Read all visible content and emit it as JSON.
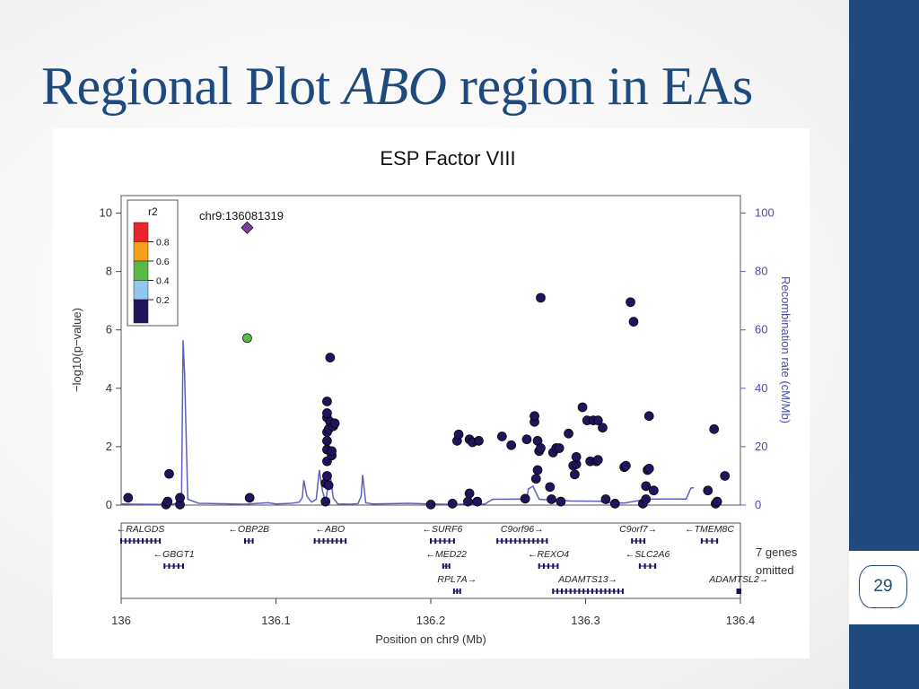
{
  "slide": {
    "title_part1": "Regional Plot",
    "title_italic": "ABO",
    "title_part2": "region in EAs",
    "page_number": "29"
  },
  "chart_data": {
    "type": "scatter",
    "title": "ESP Factor VIII",
    "xlabel": "Position on chr9 (Mb)",
    "ylabel": "−log10(p−value)",
    "y2label": "Recombination rate (cM/Mb)",
    "xlim": [
      136.0,
      136.4
    ],
    "ylim": [
      0,
      10.6
    ],
    "y2lim": [
      0,
      106
    ],
    "x_ticks": [
      "136",
      "136.1",
      "136.2",
      "136.3",
      "136.4"
    ],
    "y_ticks": [
      "0",
      "2",
      "4",
      "6",
      "8",
      "10"
    ],
    "y2_ticks": [
      "0",
      "20",
      "40",
      "60",
      "80",
      "100"
    ],
    "lead_snp": {
      "label": "chr9:136081319",
      "x": 136.0814,
      "y": 9.5,
      "color": "#7b3fa0"
    },
    "legend": {
      "title": "r2",
      "labels": [
        "0.8",
        "0.6",
        "0.4",
        "0.2"
      ],
      "colors": [
        "#e8262b",
        "#f6a21b",
        "#58b947",
        "#8fc7ef",
        "#22145a"
      ]
    },
    "colors": {
      "point_default": "#22145a",
      "point_green": "#58b947",
      "recomb_line": "#5f5fc2",
      "gene": "#1a1060"
    },
    "points": [
      [
        136.0045,
        0.25
      ],
      [
        136.029,
        0.02
      ],
      [
        136.03,
        0.12
      ],
      [
        136.031,
        1.07
      ],
      [
        136.038,
        0.02
      ],
      [
        136.038,
        0.25
      ],
      [
        136.0814,
        5.72,
        "g"
      ],
      [
        136.083,
        0.25
      ],
      [
        136.132,
        0.12
      ],
      [
        136.132,
        0.75
      ],
      [
        136.133,
        1.0
      ],
      [
        136.133,
        1.5
      ],
      [
        136.133,
        1.9
      ],
      [
        136.133,
        2.2
      ],
      [
        136.133,
        2.5
      ],
      [
        136.133,
        3.0
      ],
      [
        136.133,
        3.15
      ],
      [
        136.133,
        3.55
      ],
      [
        136.134,
        0.68
      ],
      [
        136.134,
        2.6
      ],
      [
        136.135,
        2.85
      ],
      [
        136.135,
        5.05
      ],
      [
        136.136,
        1.7
      ],
      [
        136.136,
        1.85
      ],
      [
        136.137,
        2.7
      ],
      [
        136.138,
        2.8
      ],
      [
        136.2,
        0.02
      ],
      [
        136.214,
        0.05
      ],
      [
        136.217,
        2.2
      ],
      [
        136.218,
        2.42
      ],
      [
        136.224,
        0.12
      ],
      [
        136.225,
        0.4
      ],
      [
        136.225,
        2.25
      ],
      [
        136.227,
        2.15
      ],
      [
        136.23,
        0.12
      ],
      [
        136.231,
        2.2
      ],
      [
        136.246,
        2.35
      ],
      [
        136.252,
        2.05
      ],
      [
        136.261,
        0.22
      ],
      [
        136.262,
        2.25
      ],
      [
        136.267,
        2.85
      ],
      [
        136.267,
        3.05
      ],
      [
        136.268,
        0.9
      ],
      [
        136.269,
        1.2
      ],
      [
        136.269,
        2.2
      ],
      [
        136.27,
        1.85
      ],
      [
        136.271,
        7.1
      ],
      [
        136.271,
        1.95
      ],
      [
        136.277,
        0.62
      ],
      [
        136.278,
        0.2
      ],
      [
        136.279,
        1.8
      ],
      [
        136.281,
        1.95
      ],
      [
        136.283,
        1.95
      ],
      [
        136.284,
        0.12
      ],
      [
        136.289,
        2.45
      ],
      [
        136.292,
        1.35
      ],
      [
        136.293,
        1.05
      ],
      [
        136.294,
        1.4
      ],
      [
        136.294,
        1.65
      ],
      [
        136.298,
        3.35
      ],
      [
        136.301,
        2.9
      ],
      [
        136.303,
        1.5
      ],
      [
        136.305,
        2.9
      ],
      [
        136.307,
        1.5
      ],
      [
        136.308,
        2.9
      ],
      [
        136.308,
        1.55
      ],
      [
        136.311,
        2.65
      ],
      [
        136.313,
        0.2
      ],
      [
        136.319,
        0.05
      ],
      [
        136.325,
        1.3
      ],
      [
        136.326,
        1.35
      ],
      [
        136.329,
        6.95
      ],
      [
        136.331,
        6.28
      ],
      [
        136.337,
        0.05
      ],
      [
        136.339,
        0.2
      ],
      [
        136.339,
        0.65
      ],
      [
        136.34,
        1.2
      ],
      [
        136.341,
        1.25
      ],
      [
        136.341,
        3.05
      ],
      [
        136.344,
        0.5
      ],
      [
        136.379,
        0.5
      ],
      [
        136.383,
        2.6
      ],
      [
        136.384,
        0.05
      ],
      [
        136.385,
        0.12
      ],
      [
        136.39,
        1.0
      ]
    ],
    "recombination": [
      [
        136.0,
        0.4
      ],
      [
        136.01,
        0.3
      ],
      [
        136.025,
        0.2
      ],
      [
        136.034,
        0.4
      ],
      [
        136.037,
        0.8
      ],
      [
        136.039,
        3.0
      ],
      [
        136.04,
        56.5
      ],
      [
        136.041,
        45
      ],
      [
        136.043,
        2.0
      ],
      [
        136.05,
        0.6
      ],
      [
        136.07,
        0.4
      ],
      [
        136.08,
        0.3
      ],
      [
        136.095,
        0.8
      ],
      [
        136.1,
        0.4
      ],
      [
        136.11,
        0.6
      ],
      [
        136.115,
        1.0
      ],
      [
        136.117,
        2.5
      ],
      [
        136.118,
        8.5
      ],
      [
        136.12,
        3.0
      ],
      [
        136.123,
        1.0
      ],
      [
        136.126,
        2.0
      ],
      [
        136.128,
        12.0
      ],
      [
        136.13,
        5.0
      ],
      [
        136.132,
        1.2
      ],
      [
        136.135,
        10.5
      ],
      [
        136.137,
        2.5
      ],
      [
        136.14,
        0.4
      ],
      [
        136.148,
        0.3
      ],
      [
        136.153,
        0.5
      ],
      [
        136.155,
        3.0
      ],
      [
        136.156,
        10.3
      ],
      [
        136.158,
        0.8
      ],
      [
        136.162,
        0.4
      ],
      [
        136.175,
        0.5
      ],
      [
        136.185,
        0.6
      ],
      [
        136.2,
        0.4
      ],
      [
        136.215,
        0.2
      ],
      [
        136.22,
        0.3
      ],
      [
        136.235,
        0.4
      ],
      [
        136.24,
        2.0
      ],
      [
        136.26,
        2.1
      ],
      [
        136.262,
        2.0
      ],
      [
        136.263,
        5.5
      ],
      [
        136.266,
        6.5
      ],
      [
        136.27,
        2.0
      ],
      [
        136.29,
        1.4
      ],
      [
        136.31,
        1.3
      ],
      [
        136.312,
        0.8
      ],
      [
        136.325,
        0.7
      ],
      [
        136.335,
        1.6
      ],
      [
        136.337,
        2.1
      ],
      [
        136.365,
        2.1
      ],
      [
        136.368,
        5.8
      ],
      [
        136.37,
        6.0
      ]
    ],
    "genes": [
      {
        "name": "RALGDS",
        "dir": "left",
        "row": 0,
        "x1": 136.0,
        "x2": 136.025
      },
      {
        "name": "OBP2B",
        "dir": "left",
        "row": 0,
        "x1": 136.08,
        "x2": 136.085
      },
      {
        "name": "ABO",
        "dir": "left",
        "row": 0,
        "x1": 136.125,
        "x2": 136.145
      },
      {
        "name": "SURF6",
        "dir": "left",
        "row": 0,
        "x1": 136.2,
        "x2": 136.215
      },
      {
        "name": "C9orf96",
        "dir": "right",
        "row": 0,
        "x1": 136.243,
        "x2": 136.275
      },
      {
        "name": "C9orf7",
        "dir": "right",
        "row": 0,
        "x1": 136.33,
        "x2": 136.338
      },
      {
        "name": "TMEM8C",
        "dir": "left",
        "row": 0,
        "x1": 136.375,
        "x2": 136.385
      },
      {
        "name": "GBGT1",
        "dir": "left",
        "row": 1,
        "x1": 136.028,
        "x2": 136.04
      },
      {
        "name": "MED22",
        "dir": "left",
        "row": 1,
        "x1": 136.208,
        "x2": 136.212
      },
      {
        "name": "REXO4",
        "dir": "left",
        "row": 1,
        "x1": 136.27,
        "x2": 136.282
      },
      {
        "name": "SLC2A6",
        "dir": "left",
        "row": 1,
        "x1": 136.335,
        "x2": 136.345
      },
      {
        "name": "RPL7A",
        "dir": "right",
        "row": 2,
        "x1": 136.215,
        "x2": 136.219
      },
      {
        "name": "ADAMTS13",
        "dir": "right",
        "row": 2,
        "x1": 136.279,
        "x2": 136.324
      },
      {
        "name": "ADAMTSL2",
        "dir": "right",
        "row": 2,
        "x1": 136.398,
        "x2": 136.4
      }
    ],
    "genes_omitted_line1": "7 genes",
    "genes_omitted_line2": "omitted"
  }
}
